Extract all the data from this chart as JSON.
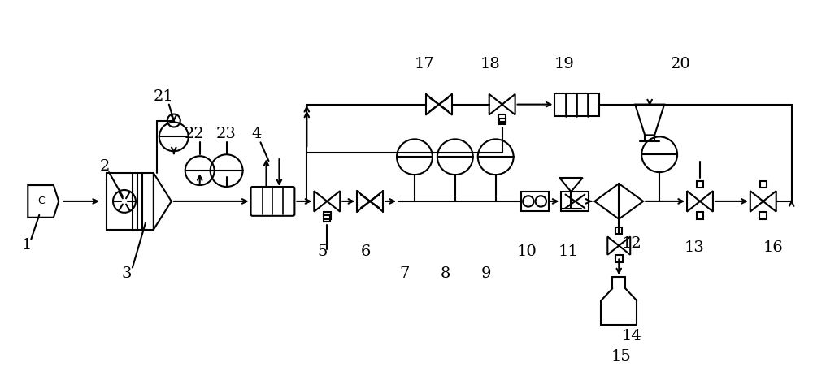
{
  "bg_color": "#ffffff",
  "line_color": "#000000",
  "lw": 1.5,
  "label_fontsize": 14
}
